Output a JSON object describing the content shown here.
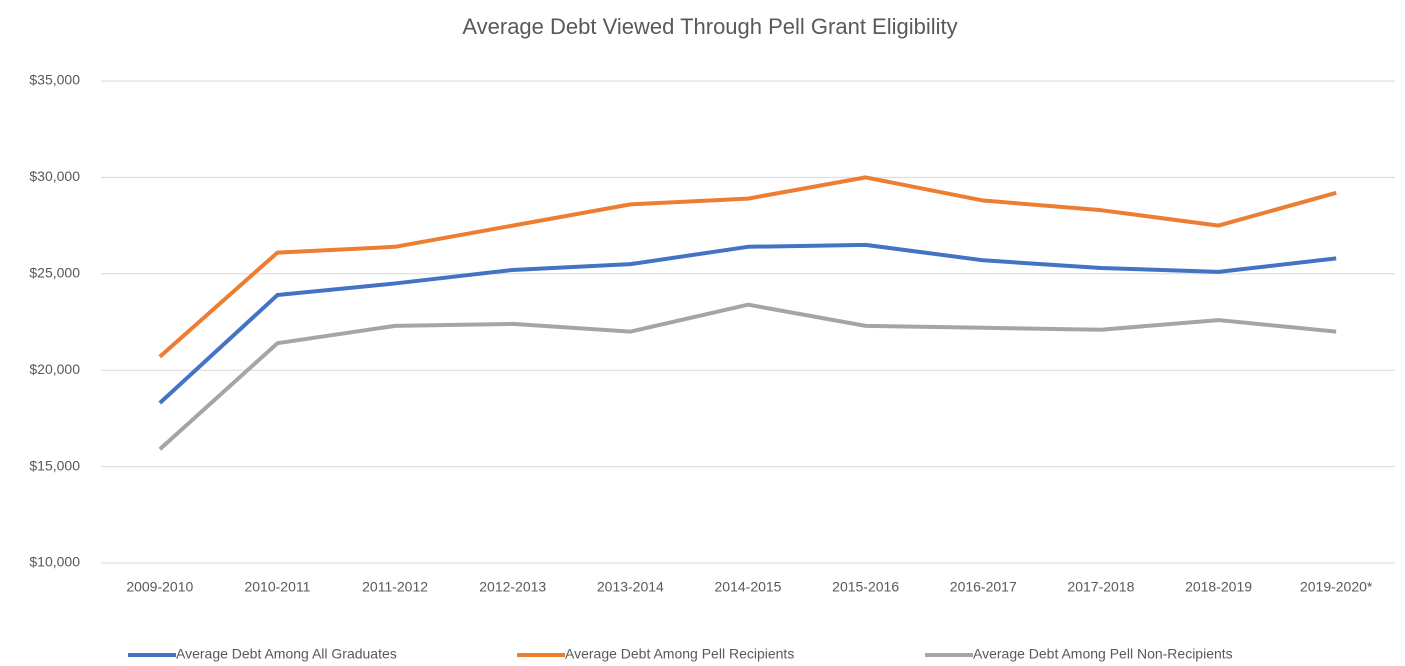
{
  "chart_data": {
    "type": "line",
    "title": "Average Debt Viewed Through Pell Grant Eligibility",
    "categories": [
      "2009-2010",
      "2010-2011",
      "2011-2012",
      "2012-2013",
      "2013-2014",
      "2014-2015",
      "2015-2016",
      "2016-2017",
      "2017-2018",
      "2018-2019",
      "2019-2020*"
    ],
    "series": [
      {
        "name": "Average Debt Among All Graduates",
        "color": "#4472c4",
        "values": [
          18300,
          23900,
          24500,
          25200,
          25500,
          26400,
          26500,
          25700,
          25300,
          25100,
          25800
        ]
      },
      {
        "name": "Average Debt Among Pell Recipients",
        "color": "#ed7d31",
        "values": [
          20700,
          26100,
          26400,
          27500,
          28600,
          28900,
          30000,
          28800,
          28300,
          27500,
          29200
        ]
      },
      {
        "name": "Average Debt Among Pell Non-Recipients",
        "color": "#a5a5a5",
        "values": [
          15900,
          21400,
          22300,
          22400,
          22000,
          23400,
          22300,
          22200,
          22100,
          22600,
          22000
        ]
      }
    ],
    "ylim": [
      10000,
      35000
    ],
    "yticks": [
      {
        "value": 10000,
        "label": "$10,000"
      },
      {
        "value": 15000,
        "label": "$15,000"
      },
      {
        "value": 20000,
        "label": "$20,000"
      },
      {
        "value": 25000,
        "label": "$25,000"
      },
      {
        "value": 30000,
        "label": "$30,000"
      },
      {
        "value": 35000,
        "label": "$35,000"
      }
    ],
    "grid": true,
    "legend": "bottom"
  }
}
